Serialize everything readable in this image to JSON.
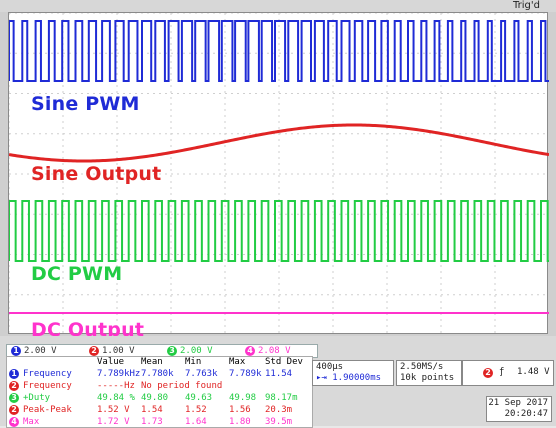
{
  "status": {
    "trigger_state": "Trig'd"
  },
  "traces": {
    "ch1_label": "Sine PWM",
    "ch2_label": "Sine Output",
    "ch3_label": "DC PWM",
    "ch4_label": "DC Output"
  },
  "colors": {
    "ch1": "#1f2bd6",
    "ch2": "#e02424",
    "ch3": "#22cc44",
    "ch4": "#ff33cc"
  },
  "channels": [
    {
      "num": "1",
      "volts": "2.00 V"
    },
    {
      "num": "2",
      "volts": "1.00 V"
    },
    {
      "num": "3",
      "volts": "2.00 V"
    },
    {
      "num": "4",
      "volts": "2.08 V"
    }
  ],
  "measurements": {
    "headers": [
      "Value",
      "Mean",
      "Min",
      "Max",
      "Std Dev"
    ],
    "rows": [
      {
        "ch": "1",
        "name": "Frequency",
        "value": "7.789kHz",
        "mean": "7.780k",
        "min": "7.763k",
        "max": "7.789k",
        "std": "11.54"
      },
      {
        "ch": "2",
        "name": "Frequency",
        "value": "-----Hz",
        "mean": "No period found",
        "min": "",
        "max": "",
        "std": ""
      },
      {
        "ch": "3",
        "name": "+Duty",
        "value": "49.84 %",
        "mean": "49.80",
        "min": "49.63",
        "max": "49.98",
        "std": "98.17m"
      },
      {
        "ch": "2",
        "name": "Peak-Peak",
        "value": "1.52 V",
        "mean": "1.54",
        "min": "1.52",
        "max": "1.56",
        "std": "20.3m"
      },
      {
        "ch": "4",
        "name": "Max",
        "value": "1.72 V",
        "mean": "1.73",
        "min": "1.64",
        "max": "1.80",
        "std": "39.5m"
      }
    ]
  },
  "timebase": {
    "scale": "400µs",
    "delay": "1.90000ms"
  },
  "sampling": {
    "rate": "2.50MS/s",
    "points": "10k points"
  },
  "trigger": {
    "channel": "2",
    "slope": "ƒ",
    "level": "1.48 V"
  },
  "datetime": {
    "date": "21 Sep 2017",
    "time": "20:20:47"
  }
}
